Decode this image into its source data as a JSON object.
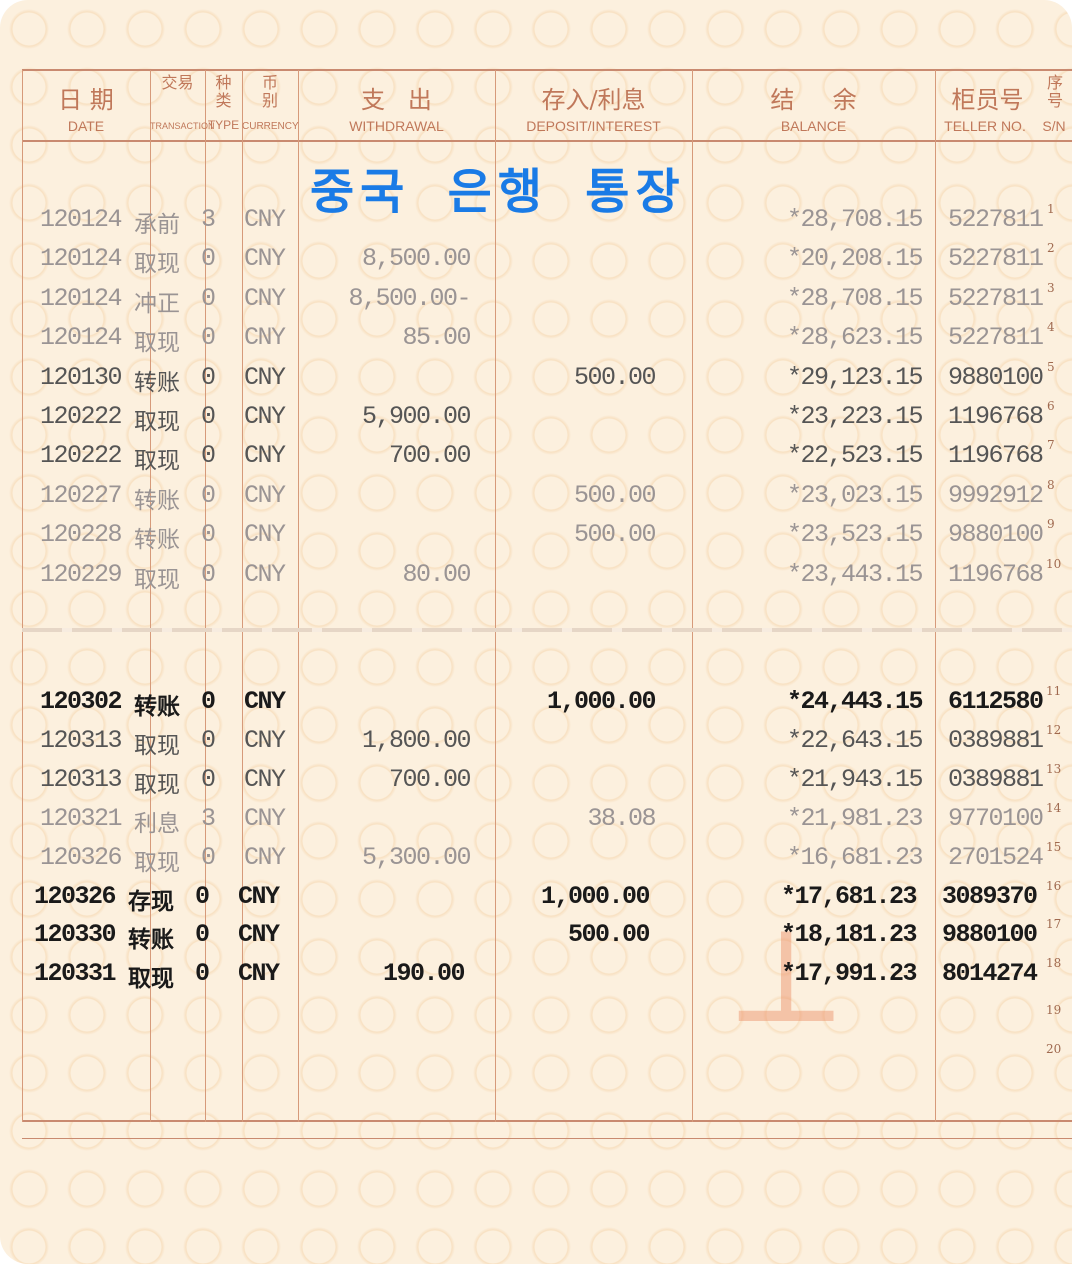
{
  "header": {
    "date": {
      "cn": "日 期",
      "en": "DATE"
    },
    "transaction": {
      "cn": "交易",
      "en": "TRANSACTION"
    },
    "type": {
      "cn": "种类",
      "en": "TYPE"
    },
    "currency": {
      "cn": "币别",
      "en": "CURRENCY"
    },
    "withdrawal": {
      "cn": "支   出",
      "en": "WITHDRAWAL"
    },
    "deposit": {
      "cn": "存入/利息",
      "en": "DEPOSIT/INTEREST"
    },
    "balance": {
      "cn": "结     余",
      "en": "BALANCE"
    },
    "teller": {
      "cn": "柜员号",
      "en": "TELLER NO."
    },
    "sn": {
      "cn": "序号",
      "en": "S/N"
    }
  },
  "overlay_title": "중국 은행 통장",
  "colors": {
    "grid": "#c98a70",
    "overlay_title": "#1a7be6",
    "paper": "#fcf0de"
  },
  "rows": [
    {
      "date": "120124",
      "transaction": "承前",
      "type": "3",
      "currency": "CNY",
      "withdrawal": "",
      "deposit": "",
      "balance": "*28,708.15",
      "teller": "5227811",
      "sn": "1",
      "tone": "faded"
    },
    {
      "date": "120124",
      "transaction": "取现",
      "type": "0",
      "currency": "CNY",
      "withdrawal": "8,500.00",
      "deposit": "",
      "balance": "*20,208.15",
      "teller": "5227811",
      "sn": "2",
      "tone": "faded"
    },
    {
      "date": "120124",
      "transaction": "冲正",
      "type": "0",
      "currency": "CNY",
      "withdrawal": "8,500.00-",
      "deposit": "",
      "balance": "*28,708.15",
      "teller": "5227811",
      "sn": "3",
      "tone": "faded"
    },
    {
      "date": "120124",
      "transaction": "取现",
      "type": "0",
      "currency": "CNY",
      "withdrawal": "85.00",
      "deposit": "",
      "balance": "*28,623.15",
      "teller": "5227811",
      "sn": "4",
      "tone": "faded"
    },
    {
      "date": "120130",
      "transaction": "转账",
      "type": "0",
      "currency": "CNY",
      "withdrawal": "",
      "deposit": "500.00",
      "balance": "*29,123.15",
      "teller": "9880100",
      "sn": "5",
      "tone": "medium"
    },
    {
      "date": "120222",
      "transaction": "取现",
      "type": "0",
      "currency": "CNY",
      "withdrawal": "5,900.00",
      "deposit": "",
      "balance": "*23,223.15",
      "teller": "1196768",
      "sn": "6",
      "tone": "medium"
    },
    {
      "date": "120222",
      "transaction": "取现",
      "type": "0",
      "currency": "CNY",
      "withdrawal": "700.00",
      "deposit": "",
      "balance": "*22,523.15",
      "teller": "1196768",
      "sn": "7",
      "tone": "medium"
    },
    {
      "date": "120227",
      "transaction": "转账",
      "type": "0",
      "currency": "CNY",
      "withdrawal": "",
      "deposit": "500.00",
      "balance": "*23,023.15",
      "teller": "9992912",
      "sn": "8",
      "tone": "faded"
    },
    {
      "date": "120228",
      "transaction": "转账",
      "type": "0",
      "currency": "CNY",
      "withdrawal": "",
      "deposit": "500.00",
      "balance": "*23,523.15",
      "teller": "9880100",
      "sn": "9",
      "tone": "faded"
    },
    {
      "date": "120229",
      "transaction": "取现",
      "type": "0",
      "currency": "CNY",
      "withdrawal": "80.00",
      "deposit": "",
      "balance": "*23,443.15",
      "teller": "1196768",
      "sn": "10",
      "tone": "faded"
    },
    {
      "date": "120302",
      "transaction": "转账",
      "type": "0",
      "currency": "CNY",
      "withdrawal": "",
      "deposit": "1,000.00",
      "balance": "*24,443.15",
      "teller": "6112580",
      "sn": "11",
      "tone": "dark"
    },
    {
      "date": "120313",
      "transaction": "取现",
      "type": "0",
      "currency": "CNY",
      "withdrawal": "1,800.00",
      "deposit": "",
      "balance": "*22,643.15",
      "teller": "0389881",
      "sn": "12",
      "tone": "medium"
    },
    {
      "date": "120313",
      "transaction": "取现",
      "type": "0",
      "currency": "CNY",
      "withdrawal": "700.00",
      "deposit": "",
      "balance": "*21,943.15",
      "teller": "0389881",
      "sn": "13",
      "tone": "medium"
    },
    {
      "date": "120321",
      "transaction": "利息",
      "type": "3",
      "currency": "CNY",
      "withdrawal": "",
      "deposit": "38.08",
      "balance": "*21,981.23",
      "teller": "9770100",
      "sn": "14",
      "tone": "faded"
    },
    {
      "date": "120326",
      "transaction": "取现",
      "type": "0",
      "currency": "CNY",
      "withdrawal": "5,300.00",
      "deposit": "",
      "balance": "*16,681.23",
      "teller": "2701524",
      "sn": "15",
      "tone": "faded"
    },
    {
      "date": "120326",
      "transaction": "存现",
      "type": "0",
      "currency": "CNY",
      "withdrawal": "",
      "deposit": "1,000.00",
      "balance": "*17,681.23",
      "teller": "3089370",
      "sn": "16",
      "tone": "dark"
    },
    {
      "date": "120330",
      "transaction": "转账",
      "type": "0",
      "currency": "CNY",
      "withdrawal": "",
      "deposit": "500.00",
      "balance": "*18,181.23",
      "teller": "9880100",
      "sn": "17",
      "tone": "dark"
    },
    {
      "date": "120331",
      "transaction": "取现",
      "type": "0",
      "currency": "CNY",
      "withdrawal": "190.00",
      "deposit": "",
      "balance": "*17,991.23",
      "teller": "8014274",
      "sn": "18",
      "tone": "dark"
    },
    {
      "date": "",
      "transaction": "",
      "type": "",
      "currency": "",
      "withdrawal": "",
      "deposit": "",
      "balance": "",
      "teller": "",
      "sn": "19",
      "tone": "faded"
    },
    {
      "date": "",
      "transaction": "",
      "type": "",
      "currency": "",
      "withdrawal": "",
      "deposit": "",
      "balance": "",
      "teller": "",
      "sn": "20",
      "tone": "faded"
    }
  ]
}
